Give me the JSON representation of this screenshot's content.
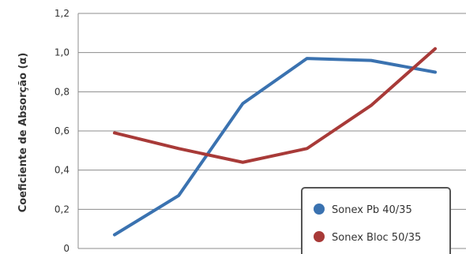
{
  "chart_data": {
    "type": "line",
    "title": "",
    "xlabel": "",
    "ylabel": "Coeficiente de Absorção (α)",
    "ylim": [
      0,
      1.2
    ],
    "yticks": [
      "0",
      "0,2",
      "0,4",
      "0,6",
      "0,8",
      "1,0",
      "1,2"
    ],
    "grid": true,
    "legend_position": "bottom-right",
    "x": [
      1,
      2,
      3,
      4,
      5,
      6
    ],
    "series": [
      {
        "name": "Sonex Pb 40/35",
        "color": "#3a72b0",
        "values": [
          0.07,
          0.27,
          0.74,
          0.97,
          0.96,
          0.9
        ]
      },
      {
        "name": "Sonex Bloc 50/35",
        "color": "#a83a38",
        "values": [
          0.59,
          0.51,
          0.44,
          0.51,
          0.73,
          1.02
        ]
      }
    ]
  }
}
